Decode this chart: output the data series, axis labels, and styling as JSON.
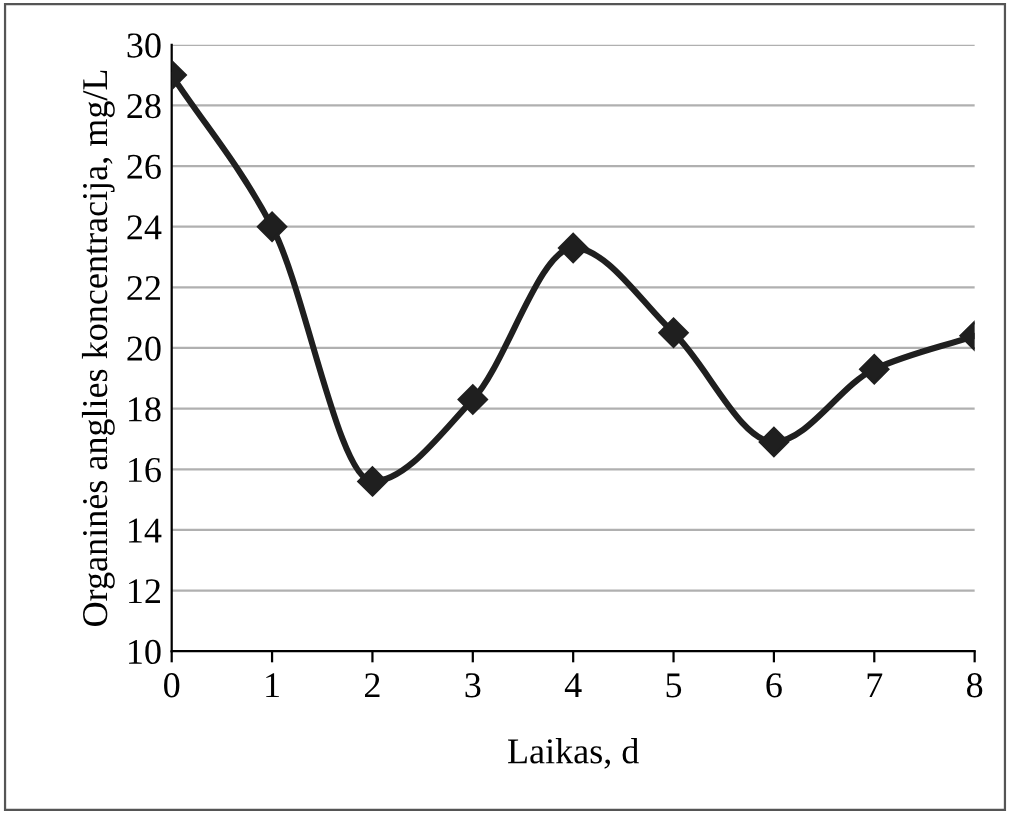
{
  "chart_data": {
    "type": "line",
    "xlabel": "Laikas, d",
    "ylabel": "Organinės anglies koncentracija, mg/L",
    "x": [
      0,
      1,
      2,
      3,
      4,
      5,
      6,
      7,
      8
    ],
    "series": [
      {
        "color": "#1f1f1f",
        "values": [
          29.0,
          24.0,
          15.6,
          18.3,
          23.3,
          20.5,
          16.9,
          19.3,
          20.4
        ]
      }
    ],
    "xlim": [
      0,
      8
    ],
    "xticks": [
      0,
      1,
      2,
      3,
      4,
      5,
      6,
      7,
      8
    ],
    "ylim": [
      10,
      30
    ],
    "yticks": [
      10,
      12,
      14,
      16,
      18,
      20,
      22,
      24,
      26,
      28,
      30
    ],
    "grid": "y",
    "marker": "diamond",
    "line_style": "solid"
  }
}
